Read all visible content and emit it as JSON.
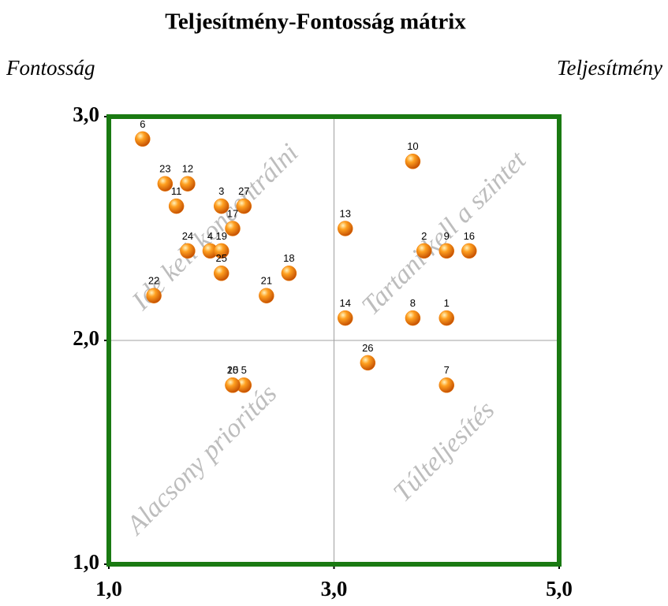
{
  "chart_data": {
    "type": "scatter",
    "title": "Teljesítmény-Fontosság mátrix",
    "y_label": "Fontosság",
    "x_label": "Teljesítmény",
    "xlim": [
      1,
      5
    ],
    "ylim": [
      1,
      3
    ],
    "xticks": [
      {
        "value": 1,
        "label": "1,0"
      },
      {
        "value": 3,
        "label": "3,0"
      },
      {
        "value": 5,
        "label": "5,0"
      }
    ],
    "yticks": [
      {
        "value": 1,
        "label": "1,0"
      },
      {
        "value": 2,
        "label": "2,0"
      },
      {
        "value": 3,
        "label": "3,0"
      }
    ],
    "grid": true,
    "border_color": "#1a7a12",
    "color": "#f07a00",
    "point_labels": [
      "1",
      "2",
      "3",
      "4",
      "5",
      "6",
      "7",
      "8",
      "9",
      "10",
      "11",
      "12",
      "13",
      "14",
      "15",
      "16",
      "17",
      "18",
      "19",
      "20",
      "21",
      "22",
      "23",
      "24",
      "25",
      "26",
      "27"
    ],
    "x": [
      4.0,
      3.8,
      2.0,
      1.9,
      2.2,
      1.3,
      4.0,
      3.7,
      4.0,
      3.7,
      1.6,
      1.7,
      3.1,
      3.1,
      2.1,
      4.2,
      2.1,
      2.6,
      2.0,
      2.1,
      2.4,
      1.4,
      1.5,
      1.7,
      2.0,
      3.3,
      2.2
    ],
    "values": [
      2.1,
      2.4,
      2.6,
      2.4,
      1.8,
      2.9,
      1.8,
      2.1,
      2.4,
      2.8,
      2.6,
      2.7,
      2.5,
      2.1,
      1.8,
      2.4,
      2.5,
      2.3,
      2.4,
      1.8,
      2.2,
      2.2,
      2.7,
      2.4,
      2.3,
      1.9,
      2.6
    ],
    "annotations": [
      "Ide kell koncentrálni",
      "Tartani kell a szintet",
      "Alacsony prioritás",
      "Túlteljesítés"
    ]
  }
}
